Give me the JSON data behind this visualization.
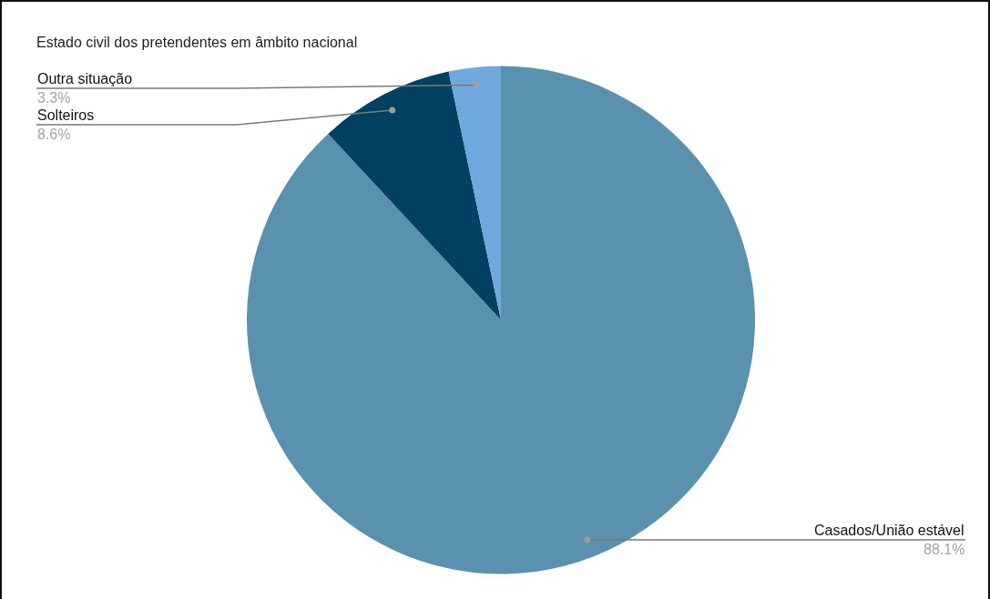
{
  "chart_data": {
    "type": "pie",
    "title": "Estado civil dos pretendentes em âmbito nacional",
    "categories": [
      "Casados/União estável",
      "Solteiros",
      "Outra situação"
    ],
    "values": [
      88.1,
      8.6,
      3.3
    ],
    "colors": [
      "#5a91ae",
      "#004060",
      "#6fa8dc"
    ],
    "value_labels": [
      "88.1%",
      "8.6%",
      "3.3%"
    ]
  }
}
